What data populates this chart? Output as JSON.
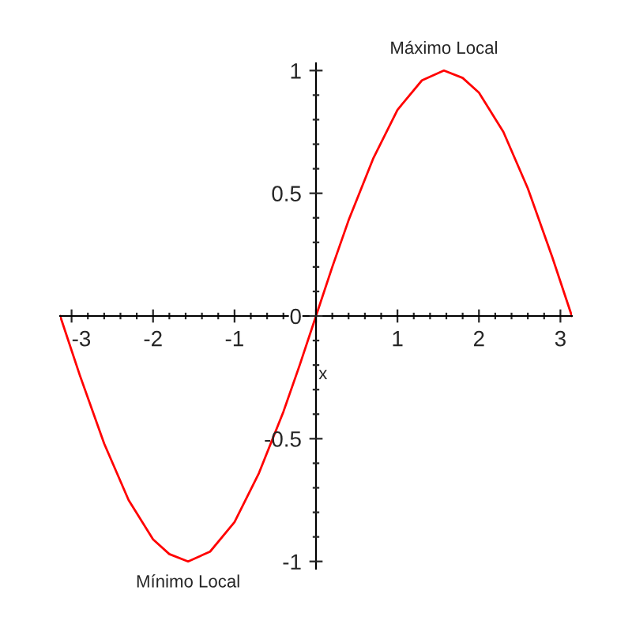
{
  "chart_data": {
    "type": "line",
    "xlabel": "x",
    "x": [
      -3.14,
      -2.9,
      -2.6,
      -2.3,
      -2.0,
      -1.8,
      -1.57,
      -1.3,
      -1.0,
      -0.7,
      -0.4,
      -0.2,
      0,
      0.2,
      0.4,
      0.7,
      1.0,
      1.3,
      1.57,
      1.8,
      2.0,
      2.3,
      2.6,
      2.9,
      3.14
    ],
    "series": [
      {
        "color": "#ff0000",
        "values": [
          0,
          -0.24,
          -0.52,
          -0.75,
          -0.91,
          -0.97,
          -1.0,
          -0.96,
          -0.84,
          -0.64,
          -0.39,
          -0.2,
          0,
          0.2,
          0.39,
          0.64,
          0.84,
          0.96,
          1.0,
          0.97,
          0.91,
          0.75,
          0.52,
          0.24,
          0
        ]
      }
    ],
    "xlim": [
      -3.1416,
      3.1416
    ],
    "ylim": [
      -1.03,
      1.03
    ],
    "xticks": [
      -3,
      -2,
      -1,
      {
        "value": 0,
        "label": null
      },
      1,
      2,
      3
    ],
    "yticks": [
      -1,
      -0.5,
      0,
      0.5,
      1
    ],
    "annotations": [
      {
        "text": "Máximo Local",
        "x": 1.57,
        "y": 1.0
      },
      {
        "text": "Mínimo Local",
        "x": -1.57,
        "y": -1.0
      }
    ],
    "grid": false,
    "legend": false,
    "marker": "none",
    "line_style": "solid"
  }
}
